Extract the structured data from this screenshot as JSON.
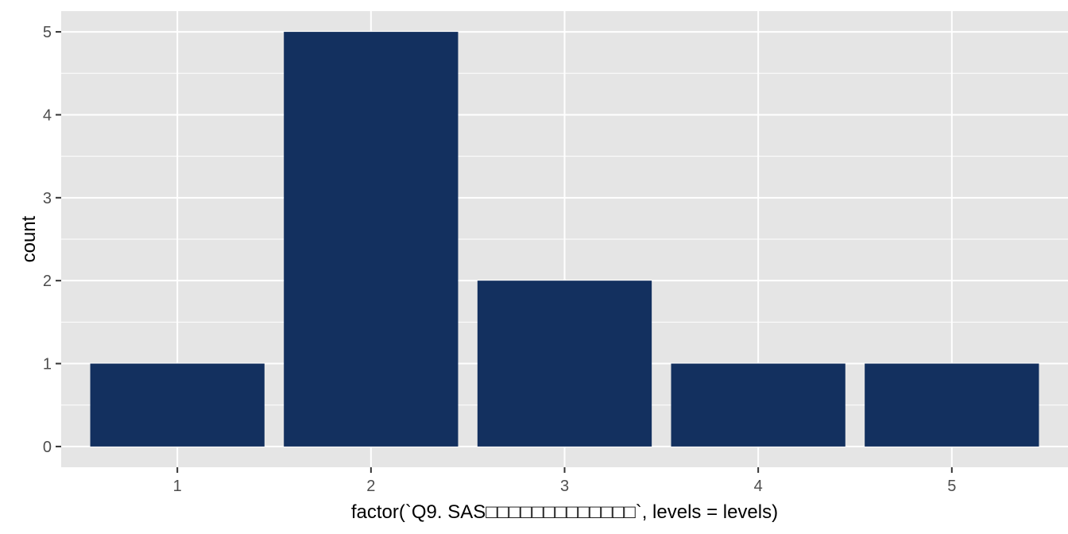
{
  "chart_data": {
    "type": "bar",
    "categories": [
      "1",
      "2",
      "3",
      "4",
      "5"
    ],
    "values": [
      1,
      5,
      2,
      1,
      1
    ],
    "title": "",
    "xlabel": "factor(`Q9. SAS□□□□□□□□□□□□□`, levels = levels)",
    "ylabel": "count",
    "ylim": [
      0,
      5
    ],
    "yticks": [
      0,
      1,
      2,
      3,
      4,
      5
    ],
    "grid": true,
    "legend": "none",
    "colors": {
      "bar": "#13305f",
      "panel": "#e5e5e5",
      "grid": "#ffffff",
      "tick_text": "#4d4d4d",
      "tick_mark": "#333333"
    }
  }
}
